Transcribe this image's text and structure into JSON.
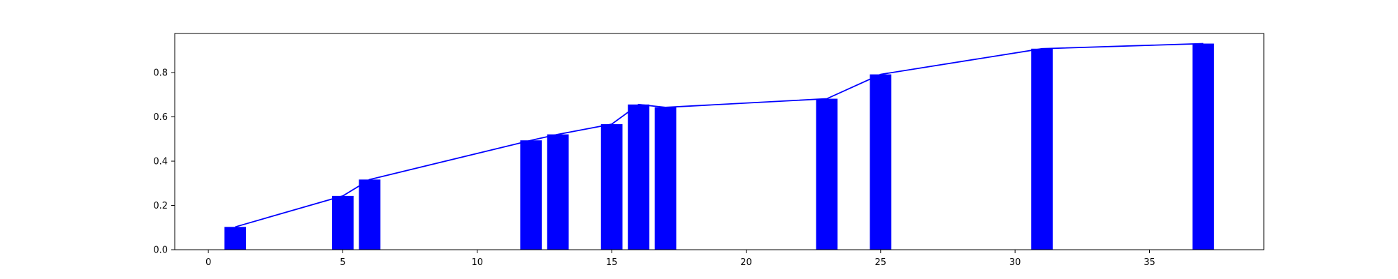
{
  "chart_data": {
    "type": "bar",
    "title": "",
    "xlabel": "",
    "ylabel": "",
    "xlim": [
      -1.25,
      39.25
    ],
    "ylim": [
      0,
      0.9767
    ],
    "xticks": [
      0,
      5,
      10,
      15,
      20,
      25,
      30,
      35
    ],
    "yticks": [
      0.0,
      0.2,
      0.4,
      0.6,
      0.8
    ],
    "xtick_labels": [
      "0",
      "5",
      "10",
      "15",
      "20",
      "25",
      "30",
      "35"
    ],
    "ytick_labels": [
      "0.0",
      "0.2",
      "0.4",
      "0.6",
      "0.8"
    ],
    "grid": false,
    "legend": "none",
    "bar_width": 0.8,
    "x": [
      1,
      5,
      6,
      12,
      13,
      15,
      16,
      17,
      23,
      25,
      31,
      37
    ],
    "values": [
      0.103,
      0.243,
      0.317,
      0.494,
      0.521,
      0.567,
      0.656,
      0.643,
      0.682,
      0.792,
      0.908,
      0.931
    ],
    "bar_color": "#0000ff",
    "line_color": "#0000ff",
    "line_values": [
      0.103,
      0.243,
      0.317,
      0.494,
      0.521,
      0.567,
      0.656,
      0.643,
      0.682,
      0.792,
      0.908,
      0.931
    ]
  }
}
